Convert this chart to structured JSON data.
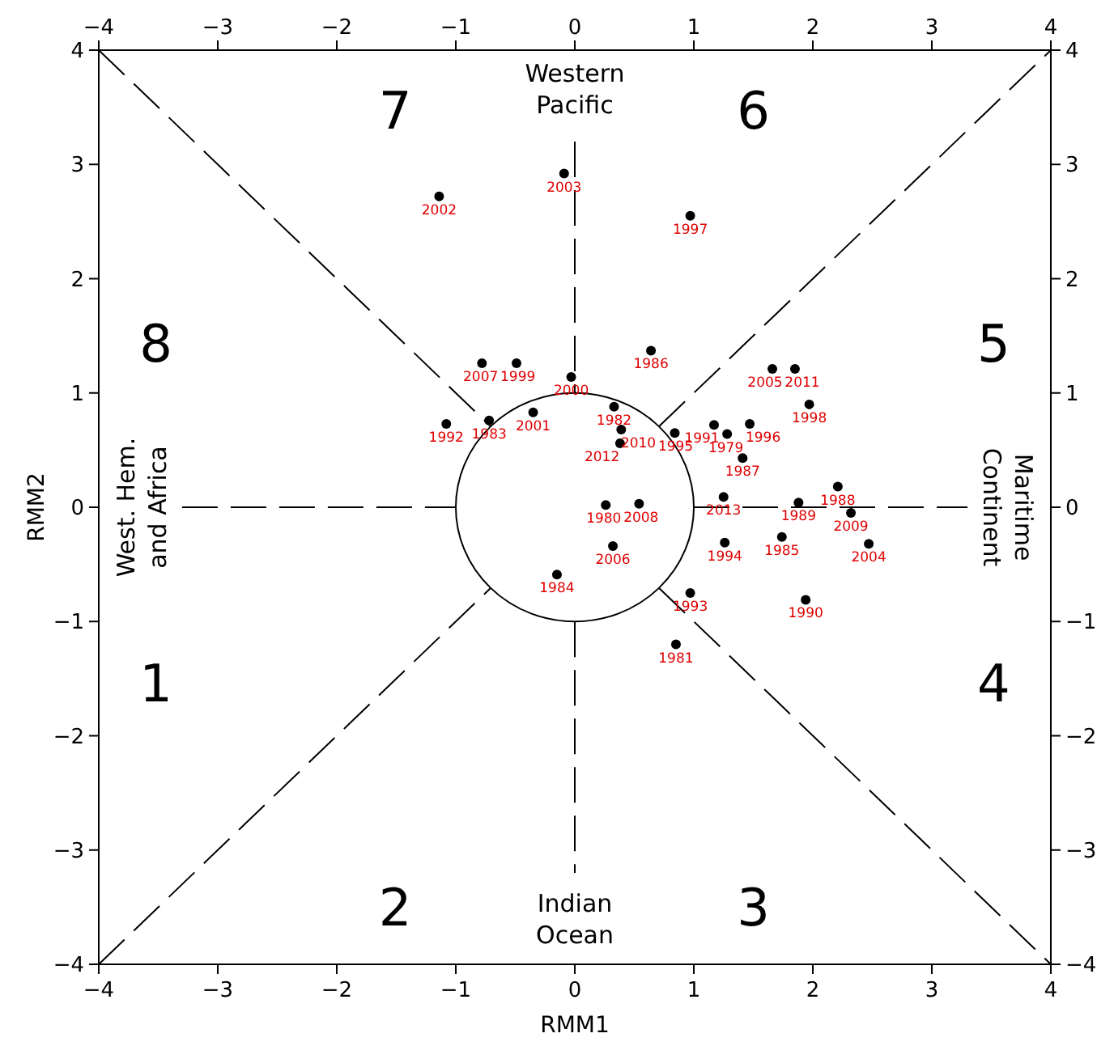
{
  "chart_data": {
    "type": "scatter",
    "xlabel": "RMM1",
    "ylabel": "RMM2",
    "xlim": [
      -4,
      4
    ],
    "xticks": [
      -4,
      -3,
      -2,
      -1,
      0,
      1,
      2,
      3,
      4
    ],
    "x2lim": [
      -4,
      4
    ],
    "x2ticks": [
      -4,
      -3,
      -2,
      -1,
      0,
      1,
      2,
      3,
      4
    ],
    "ylim": [
      -4,
      4
    ],
    "yticks": [
      -4,
      -3,
      -2,
      -1,
      0,
      1,
      2,
      3,
      4
    ],
    "y2lim": [
      -4,
      4
    ],
    "y2ticks": [
      -4,
      -3,
      -2,
      -1,
      0,
      1,
      2,
      3,
      4
    ],
    "marker": "circle",
    "grid": false,
    "series": [
      {
        "color": "#000000",
        "x": [
          -1.14,
          -0.09,
          0.97,
          0.64,
          -0.78,
          -0.49,
          -0.03,
          -1.08,
          -0.72,
          -0.35,
          0.33,
          0.39,
          0.38,
          0.84,
          1.66,
          1.85,
          1.97,
          1.17,
          1.28,
          1.47,
          1.41,
          1.25,
          1.88,
          2.21,
          2.32,
          1.26,
          1.74,
          2.47,
          1.94,
          0.26,
          0.54,
          0.32,
          -0.15,
          0.97,
          0.85
        ],
        "values": [
          2.72,
          2.92,
          2.55,
          1.37,
          1.26,
          1.26,
          1.14,
          0.73,
          0.76,
          0.83,
          0.88,
          0.68,
          0.56,
          0.65,
          1.21,
          1.21,
          0.9,
          0.72,
          0.64,
          0.73,
          0.43,
          0.09,
          0.04,
          0.18,
          -0.05,
          -0.31,
          -0.26,
          -0.32,
          -0.81,
          0.02,
          0.03,
          -0.34,
          -0.59,
          -0.75,
          -1.2
        ]
      },
      {
        "type": "line",
        "color": "#000000",
        "line_style": "dashed",
        "marker": "none",
        "x": [
          -4,
          -0.71,
          0,
          0.71,
          4
        ],
        "values": [
          -4,
          -0.71,
          null,
          0.71,
          4
        ]
      },
      {
        "type": "line",
        "color": "#000000",
        "line_style": "dashed",
        "marker": "none",
        "x": [
          -4,
          -0.71,
          0,
          0.71,
          4
        ],
        "values": [
          4,
          0.71,
          null,
          -0.71,
          -4
        ]
      },
      {
        "type": "line",
        "color": "#000000",
        "line_style": "dashed",
        "marker": "none",
        "x": [
          -3.3,
          -1
        ],
        "values": [
          0,
          0
        ]
      },
      {
        "type": "line",
        "color": "#000000",
        "line_style": "dashed",
        "marker": "none",
        "x": [
          1,
          3.3
        ],
        "values": [
          0,
          0
        ]
      }
    ],
    "ref_lines": [
      {
        "axis": "x",
        "value": 0,
        "line_style": "dashed"
      }
    ],
    "annotations": [
      "Western Pacific",
      "West. Hem. and Africa",
      "Maritime Continent",
      "Indian Ocean",
      "1",
      "2",
      "3",
      "4",
      "5",
      "6",
      "7",
      "8",
      {
        "text": "2002",
        "x": -1.14,
        "y": 2.72
      },
      {
        "text": "2003",
        "x": -0.09,
        "y": 2.92
      },
      {
        "text": "1997",
        "x": 0.97,
        "y": 2.55
      },
      {
        "text": "1986",
        "x": 0.64,
        "y": 1.37
      },
      {
        "text": "2007",
        "x": -0.78,
        "y": 1.26
      },
      {
        "text": "1999",
        "x": -0.49,
        "y": 1.26
      },
      {
        "text": "2000",
        "x": -0.03,
        "y": 1.14
      },
      {
        "text": "1992",
        "x": -1.08,
        "y": 0.73
      },
      {
        "text": "1983",
        "x": -0.72,
        "y": 0.76
      },
      {
        "text": "2001",
        "x": -0.35,
        "y": 0.83
      },
      {
        "text": "1982",
        "x": 0.33,
        "y": 0.88
      },
      {
        "text": "2010",
        "x": 0.39,
        "y": 0.68
      },
      {
        "text": "2012",
        "x": 0.38,
        "y": 0.56
      },
      {
        "text": "1995",
        "x": 0.84,
        "y": 0.65
      },
      {
        "text": "2005",
        "x": 1.66,
        "y": 1.21
      },
      {
        "text": "2011",
        "x": 1.85,
        "y": 1.21
      },
      {
        "text": "1998",
        "x": 1.97,
        "y": 0.9
      },
      {
        "text": "1991",
        "x": 1.17,
        "y": 0.72
      },
      {
        "text": "1979",
        "x": 1.28,
        "y": 0.64
      },
      {
        "text": "1996",
        "x": 1.47,
        "y": 0.73
      },
      {
        "text": "1987",
        "x": 1.41,
        "y": 0.43
      },
      {
        "text": "2013",
        "x": 1.25,
        "y": 0.09
      },
      {
        "text": "1989",
        "x": 1.88,
        "y": 0.04
      },
      {
        "text": "1988",
        "x": 2.21,
        "y": 0.18
      },
      {
        "text": "2009",
        "x": 2.32,
        "y": -0.05
      },
      {
        "text": "1994",
        "x": 1.26,
        "y": -0.31
      },
      {
        "text": "1985",
        "x": 1.74,
        "y": -0.26
      },
      {
        "text": "2004",
        "x": 2.47,
        "y": -0.32
      },
      {
        "text": "1990",
        "x": 1.94,
        "y": -0.81
      },
      {
        "text": "1980",
        "x": 0.26,
        "y": 0.02
      },
      {
        "text": "2008",
        "x": 0.54,
        "y": 0.03
      },
      {
        "text": "2006",
        "x": 0.32,
        "y": -0.34
      },
      {
        "text": "1984",
        "x": -0.15,
        "y": -0.59
      },
      {
        "text": "1993",
        "x": 0.97,
        "y": -0.75
      },
      {
        "text": "1981",
        "x": 0.85,
        "y": -1.2
      }
    ]
  }
}
